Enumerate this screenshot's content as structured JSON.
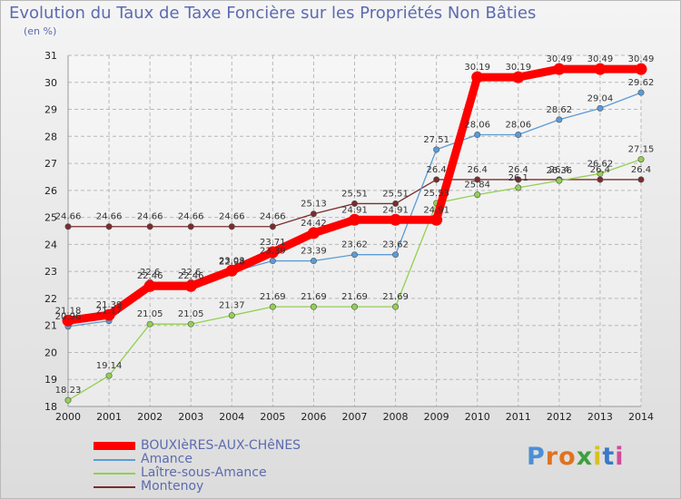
{
  "title": "Evolution du Taux de Taxe Foncière sur les Propriétés Non Bâties",
  "unit": "(en %)",
  "logo_text": "Proxiti",
  "colors": {
    "background_top": "#f4f4f4",
    "background_bottom": "#dcdcdc",
    "grid": "#b8b8b8",
    "text": "#5c6bb0",
    "axis_text": "#222222"
  },
  "chart_data": {
    "type": "line",
    "x": [
      "2000",
      "2001",
      "2002",
      "2003",
      "2004",
      "2005",
      "2006",
      "2007",
      "2008",
      "2009",
      "2010",
      "2011",
      "2012",
      "2013",
      "2014"
    ],
    "ylim": [
      18,
      31
    ],
    "yticks": [
      18,
      19,
      20,
      21,
      22,
      23,
      24,
      25,
      26,
      27,
      28,
      29,
      30,
      31
    ],
    "grid": "horizontal dashed",
    "legend_position": "bottom-left",
    "series": [
      {
        "name": "BOUXIèRES-AUX-CHêNES",
        "color": "#ff0000",
        "values": [
          21.18,
          21.39,
          22.46,
          22.46,
          23.03,
          23.71,
          24.42,
          24.91,
          24.91,
          24.91,
          30.19,
          30.19,
          30.49,
          30.49,
          30.49
        ],
        "labels": [
          "21.18",
          "21.39",
          "22.46",
          "22.46",
          "23.03",
          "23.71",
          "24.42",
          "24.91",
          "24.91",
          "24.91",
          "30.19",
          "30.19",
          "30.49",
          "30.49",
          "30.49"
        ]
      },
      {
        "name": "Amance",
        "color": "#5b9bd5",
        "values": [
          20.96,
          21.17,
          22.6,
          22.6,
          22.98,
          23.39,
          23.39,
          23.62,
          23.62,
          27.51,
          28.06,
          28.06,
          28.62,
          29.04,
          29.62
        ],
        "labels": [
          "20.96",
          "21.17",
          "22.6",
          "22.6",
          "22.98",
          "23.39",
          "23.39",
          "23.62",
          "23.62",
          "27.51",
          "28.06",
          "28.06",
          "28.62",
          "29.04",
          "29.62"
        ]
      },
      {
        "name": "Laître-sous-Amance",
        "color": "#92d050",
        "values": [
          18.23,
          19.14,
          21.05,
          21.05,
          21.37,
          21.69,
          21.69,
          21.69,
          21.69,
          25.53,
          25.84,
          26.1,
          26.36,
          26.62,
          27.15
        ],
        "labels": [
          "18.23",
          "19.14",
          "21.05",
          "21.05",
          "21.37",
          "21.69",
          "21.69",
          "21.69",
          "21.69",
          "25.53",
          "25.84",
          "26.1",
          "26.36",
          "26.62",
          "27.15"
        ]
      },
      {
        "name": "Montenoy",
        "color": "#7b2c2c",
        "values": [
          24.66,
          24.66,
          24.66,
          24.66,
          24.66,
          24.66,
          25.13,
          25.51,
          25.51,
          26.4,
          26.4,
          26.4,
          26.4,
          26.4,
          26.4
        ],
        "labels": [
          "24.66",
          "24.66",
          "24.66",
          "24.66",
          "24.66",
          "24.66",
          "25.13",
          "25.51",
          "25.51",
          "26.4",
          "26.4",
          "26.4",
          "26.4",
          "26.4",
          "26.4"
        ]
      }
    ]
  }
}
